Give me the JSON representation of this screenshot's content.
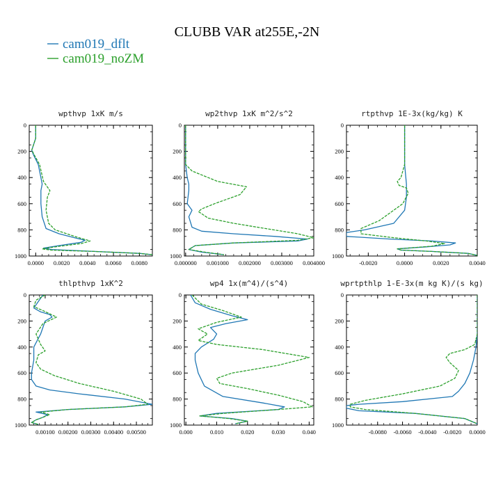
{
  "title": "CLUBB VAR at255E,-2N",
  "legend": [
    {
      "label": "cam019_dflt",
      "color": "#1f77b4",
      "dashed": false
    },
    {
      "label": "cam019_noZM",
      "color": "#2ca02c",
      "dashed": true
    }
  ],
  "chart_data": [
    {
      "type": "line",
      "title": "wpthvp   1xK m/s",
      "xlim": [
        -0.0005,
        0.009
      ],
      "ylim": [
        1000,
        0
      ],
      "xticks": [
        0,
        0.002,
        0.004,
        0.006,
        0.008
      ],
      "xtick_labels": [
        "0.0000",
        "0.0020",
        "0.0040",
        "0.0060",
        "0.0080"
      ],
      "yticks": [
        0,
        200,
        400,
        600,
        800,
        1000
      ],
      "ytick_labels": [
        "0",
        "200",
        "400",
        "600",
        "800",
        "1000"
      ],
      "series": [
        {
          "name": "cam019_dflt",
          "x": [
            0,
            0,
            -0.0003,
            -0.0002,
            0.0002,
            0.0004,
            0.0005,
            0.0004,
            0.0004,
            0.0005,
            0.0008,
            0.0018,
            0.003,
            0.0038,
            0.0035,
            0.0018,
            0.0006,
            0.0012,
            0.0045,
            0.008,
            0.009
          ],
          "y": [
            0,
            100,
            190,
            220,
            300,
            400,
            450,
            500,
            600,
            700,
            790,
            830,
            860,
            880,
            895,
            920,
            940,
            950,
            965,
            980,
            990
          ]
        },
        {
          "name": "cam019_noZM",
          "x": [
            0,
            0,
            -0.0003,
            -0.0001,
            0.0003,
            0.0006,
            0.0011,
            0.0009,
            0.0008,
            0.001,
            0.0015,
            0.003,
            0.0042,
            0.0035,
            0.0015,
            0.0005,
            0.0012,
            0.0045,
            0.008,
            0.009
          ],
          "y": [
            0,
            100,
            190,
            230,
            300,
            430,
            500,
            550,
            650,
            750,
            800,
            850,
            885,
            905,
            930,
            945,
            955,
            965,
            980,
            990
          ]
        }
      ]
    },
    {
      "type": "line",
      "title": "wp2thvp   1xK m^2/s^2",
      "xlim": [
        -4e-05,
        0.004
      ],
      "ylim": [
        1000,
        0
      ],
      "xticks": [
        0,
        0.001,
        0.002,
        0.003,
        0.004
      ],
      "xtick_labels": [
        "0.000000",
        "0.001000",
        "0.002000",
        "0.003000",
        "0.004000"
      ],
      "yticks": [
        0,
        200,
        400,
        600,
        800,
        1000
      ],
      "ytick_labels": [
        "0",
        "200",
        "400",
        "600",
        "800",
        "1000"
      ],
      "series": [
        {
          "name": "cam019_dflt",
          "x": [
            0,
            0,
            5e-05,
            0.0001,
            0.0001,
            5e-05,
            0.0002,
            0.0001,
            0.0002,
            0.0005,
            0.0015,
            0.0028,
            0.0038,
            0.0035,
            0.0015,
            0.0003,
            0.0001,
            0.0005,
            0.0012
          ],
          "y": [
            0,
            300,
            400,
            450,
            500,
            600,
            650,
            700,
            780,
            810,
            830,
            850,
            870,
            885,
            900,
            920,
            950,
            970,
            990
          ]
        },
        {
          "name": "cam019_noZM",
          "x": [
            0,
            0,
            0.0002,
            0.001,
            0.0019,
            0.0017,
            0.0009,
            0.0005,
            0.0004,
            0.0007,
            0.0015,
            0.0025,
            0.0035,
            0.004,
            0.0035,
            0.0015,
            0.0003,
            0.0001,
            0.0006,
            0.0012
          ],
          "y": [
            0,
            300,
            350,
            430,
            470,
            530,
            600,
            640,
            660,
            710,
            750,
            790,
            830,
            860,
            880,
            900,
            920,
            950,
            970,
            990
          ]
        }
      ]
    },
    {
      "type": "line",
      "title": "rtpthvp   1E-3x(kg/kg) K",
      "xlim": [
        -0.0032,
        0.004
      ],
      "ylim": [
        1000,
        0
      ],
      "xticks": [
        -0.002,
        0,
        0.002,
        0.004
      ],
      "xtick_labels": [
        "-0.0020",
        "0.0000",
        "0.0020",
        "0.0040"
      ],
      "yticks": [
        0,
        200,
        400,
        600,
        800,
        1000
      ],
      "ytick_labels": [
        "0",
        "200",
        "400",
        "600",
        "800",
        "1000"
      ],
      "series": [
        {
          "name": "cam019_dflt",
          "x": [
            0,
            0,
            0,
            0,
            0.0001,
            0.0001,
            0,
            -0.0006,
            -0.0022,
            -0.0032,
            -0.0032,
            -0.0008,
            0.0015,
            0.0028,
            0.0025,
            0.0012,
            -0.0004,
            -0.0002,
            0.0015,
            0.0035,
            0.004
          ],
          "y": [
            0,
            100,
            200,
            300,
            450,
            550,
            650,
            750,
            800,
            820,
            850,
            870,
            885,
            900,
            915,
            930,
            945,
            955,
            965,
            980,
            995
          ]
        },
        {
          "name": "cam019_noZM",
          "x": [
            0,
            0,
            0,
            -0.0002,
            -0.0004,
            -0.0003,
            0.0001,
            0.0002,
            -0.0001,
            -0.0006,
            -0.0014,
            -0.0024,
            -0.0024,
            -0.0006,
            0.0012,
            0.0022,
            0.0015,
            -0.0004,
            -0.0002,
            0.0015,
            0.0035,
            0.004
          ],
          "y": [
            0,
            100,
            300,
            400,
            430,
            460,
            480,
            520,
            600,
            650,
            730,
            790,
            830,
            860,
            885,
            905,
            925,
            945,
            955,
            965,
            980,
            995
          ]
        }
      ]
    },
    {
      "type": "line",
      "title": "thlpthvp   1xK^2",
      "xlim": [
        0.0003,
        0.0057
      ],
      "ylim": [
        1000,
        0
      ],
      "xticks": [
        0.001,
        0.002,
        0.003,
        0.004,
        0.005
      ],
      "xtick_labels": [
        "0.00100",
        "0.00200",
        "0.00300",
        "0.00400",
        "0.00500"
      ],
      "yticks": [
        0,
        200,
        400,
        600,
        800,
        1000
      ],
      "ytick_labels": [
        "0",
        "200",
        "400",
        "600",
        "800",
        "1000"
      ],
      "series": [
        {
          "name": "cam019_dflt",
          "x": [
            0.0009,
            0.0007,
            0.0005,
            0.0008,
            0.0012,
            0.0013,
            0.001,
            0.0008,
            0.0005,
            0.0005,
            0.0004,
            0.0004,
            0.0006,
            0.0012,
            0.0025,
            0.0045,
            0.0057,
            0.0045,
            0.002,
            0.0006,
            0.0011,
            0.0009,
            0.0006,
            0.0004,
            0.0007
          ],
          "y": [
            0,
            50,
            100,
            130,
            150,
            170,
            200,
            300,
            400,
            500,
            600,
            650,
            700,
            730,
            760,
            800,
            840,
            860,
            880,
            900,
            920,
            940,
            960,
            980,
            995
          ]
        },
        {
          "name": "cam019_noZM",
          "x": [
            0.001,
            0.0006,
            0.0005,
            0.0009,
            0.0015,
            0.0009,
            0.0006,
            0.0008,
            0.001,
            0.0007,
            0.0006,
            0.0008,
            0.0014,
            0.0025,
            0.004,
            0.0052,
            0.0055,
            0.0045,
            0.002,
            0.0008,
            0.0012,
            0.0009,
            0.0006,
            0.0004,
            0.0007
          ],
          "y": [
            0,
            40,
            90,
            120,
            170,
            220,
            300,
            380,
            430,
            460,
            520,
            570,
            620,
            680,
            740,
            800,
            840,
            860,
            880,
            900,
            920,
            940,
            960,
            980,
            995
          ]
        }
      ]
    },
    {
      "type": "line",
      "title": "wp4   1x(m^4)/(s^4)",
      "xlim": [
        -0.0005,
        0.0415
      ],
      "ylim": [
        1000,
        0
      ],
      "xticks": [
        0,
        0.01,
        0.02,
        0.03,
        0.04
      ],
      "xtick_labels": [
        "0.000",
        "0.010",
        "0.020",
        "0.030",
        "0.040"
      ],
      "yticks": [
        0,
        200,
        400,
        600,
        800,
        1000
      ],
      "ytick_labels": [
        "0",
        "200",
        "400",
        "600",
        "800",
        "1000"
      ],
      "series": [
        {
          "name": "cam019_dflt",
          "x": [
            0.0015,
            0.003,
            0.008,
            0.015,
            0.02,
            0.013,
            0.008,
            0.01,
            0.009,
            0.005,
            0.003,
            0.003,
            0.004,
            0.006,
            0.012,
            0.025,
            0.032,
            0.03,
            0.01,
            0.0045,
            0.015,
            0.02,
            0.016
          ],
          "y": [
            0,
            60,
            110,
            160,
            190,
            220,
            250,
            300,
            340,
            400,
            450,
            500,
            600,
            700,
            780,
            830,
            860,
            880,
            910,
            930,
            950,
            970,
            990
          ]
        },
        {
          "name": "cam019_noZM",
          "x": [
            0.002,
            0.005,
            0.012,
            0.018,
            0.01,
            0.004,
            0.007,
            0.004,
            0.01,
            0.025,
            0.04,
            0.03,
            0.015,
            0.01,
            0.011,
            0.02,
            0.03,
            0.038,
            0.041,
            0.03,
            0.012,
            0.0045,
            0.014,
            0.02,
            0.016
          ],
          "y": [
            0,
            70,
            120,
            170,
            210,
            260,
            300,
            350,
            380,
            420,
            480,
            540,
            600,
            640,
            680,
            720,
            770,
            820,
            860,
            880,
            910,
            930,
            950,
            970,
            990
          ]
        }
      ]
    },
    {
      "type": "line",
      "title": "wprtpthlp   1-E-3x(m kg K)/(s kg)",
      "xlim": [
        -0.0105,
        0
      ],
      "ylim": [
        1000,
        0
      ],
      "xticks": [
        -0.008,
        -0.006,
        -0.004,
        -0.002,
        0
      ],
      "xtick_labels": [
        "-0.0080",
        "-0.0060",
        "-0.0040",
        "-0.0020",
        "0.0000"
      ],
      "yticks": [
        0,
        200,
        400,
        600,
        800,
        1000
      ],
      "ytick_labels": [
        "0",
        "200",
        "400",
        "600",
        "800",
        "1000"
      ],
      "series": [
        {
          "name": "cam019_dflt",
          "x": [
            0,
            0,
            -0.0001,
            -0.0003,
            -0.0006,
            -0.001,
            -0.0015,
            -0.002,
            -0.006,
            -0.0095,
            -0.0105,
            -0.0105,
            -0.0095,
            -0.005,
            -0.001,
            0
          ],
          "y": [
            0,
            300,
            400,
            500,
            600,
            680,
            740,
            780,
            820,
            840,
            850,
            870,
            890,
            910,
            950,
            990
          ]
        },
        {
          "name": "cam019_noZM",
          "x": [
            0,
            0,
            -0.0002,
            -0.001,
            -0.0022,
            -0.0025,
            -0.0022,
            -0.0015,
            -0.0018,
            -0.003,
            -0.006,
            -0.009,
            -0.0102,
            -0.0102,
            -0.009,
            -0.005,
            -0.001,
            0
          ],
          "y": [
            0,
            300,
            380,
            420,
            450,
            480,
            520,
            580,
            640,
            700,
            760,
            810,
            840,
            860,
            880,
            910,
            950,
            990
          ]
        }
      ]
    }
  ]
}
